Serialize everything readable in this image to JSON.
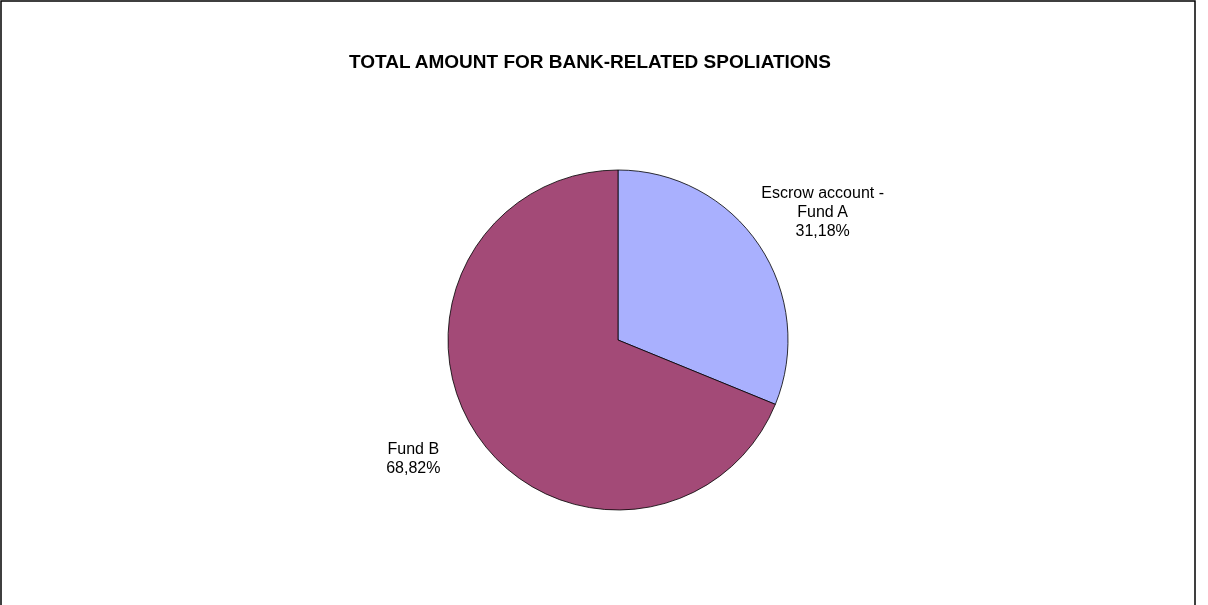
{
  "chart_data": {
    "type": "pie",
    "title": "TOTAL AMOUNT FOR BANK-RELATED SPOLIATIONS",
    "categories": [
      "Escrow account - Fund A",
      "Fund B"
    ],
    "values": [
      31.18,
      68.82
    ],
    "value_labels": [
      "31,18%",
      "68,82%"
    ],
    "colors": [
      "#a9b0fe",
      "#a34a77"
    ]
  }
}
